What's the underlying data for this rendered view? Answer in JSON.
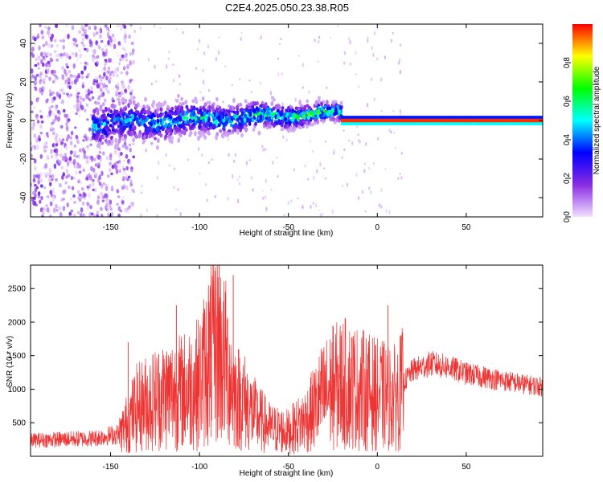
{
  "figure_title": "C2E4.2025.050.23.38.R05",
  "chart_data": [
    {
      "type": "heatmap",
      "title": "C2E4.2025.050.23.38.R05",
      "xlabel": "Height of straight line (km)",
      "ylabel": "Frequency (Hz)",
      "xlim": [
        -195,
        93
      ],
      "ylim": [
        -50,
        50
      ],
      "x_ticks": [
        -150,
        -100,
        -50,
        0,
        50
      ],
      "y_ticks": [
        -40,
        -20,
        0,
        20,
        40
      ],
      "colorbar": {
        "label": "Normalized spectral amplitude",
        "range": [
          0,
          1
        ],
        "ticks": [
          0.0,
          0.2,
          0.4,
          0.6,
          0.8
        ],
        "colors": [
          "#f0e0ff",
          "#8a2be2",
          "#0000ff",
          "#00ffff",
          "#00ff00",
          "#ffff00",
          "#ff0000"
        ]
      },
      "features": {
        "scatter_region_x": [
          -195,
          -145
        ],
        "band_x": [
          -160,
          -20
        ],
        "band_center_y": [
          -2,
          4
        ],
        "line_x": [
          -20,
          93
        ],
        "line_y": 0
      }
    },
    {
      "type": "line",
      "xlabel": "Height of straight line (km)",
      "ylabel": "SNR (10 * v/v)",
      "xlim": [
        -195,
        93
      ],
      "ylim": [
        0,
        2850
      ],
      "x_ticks": [
        -150,
        -100,
        -50,
        0,
        50
      ],
      "y_ticks": [
        500,
        1000,
        1500,
        2000,
        2500
      ],
      "color": "#ee3333",
      "envelope": {
        "x": [
          -195,
          -160,
          -145,
          -135,
          -120,
          -110,
          -100,
          -95,
          -90,
          -85,
          -80,
          -75,
          -70,
          -60,
          -50,
          -40,
          -30,
          -20,
          -10,
          0,
          10,
          20,
          30,
          40,
          50,
          60,
          70,
          80,
          93
        ],
        "y": [
          250,
          280,
          350,
          800,
          1000,
          1050,
          1200,
          1600,
          1800,
          1500,
          1000,
          900,
          700,
          450,
          400,
          600,
          1000,
          1200,
          1100,
          1000,
          950,
          1300,
          1400,
          1350,
          1250,
          1200,
          1150,
          1100,
          1050
        ]
      },
      "peaks": [
        {
          "x": -89,
          "y": 2850
        },
        {
          "x": -81,
          "y": 2700
        },
        {
          "x": -94,
          "y": 2500
        },
        {
          "x": -113,
          "y": 2250
        },
        {
          "x": -25,
          "y": 1950
        },
        {
          "x": 6,
          "y": 2250
        },
        {
          "x": -140,
          "y": 1700
        }
      ]
    }
  ]
}
